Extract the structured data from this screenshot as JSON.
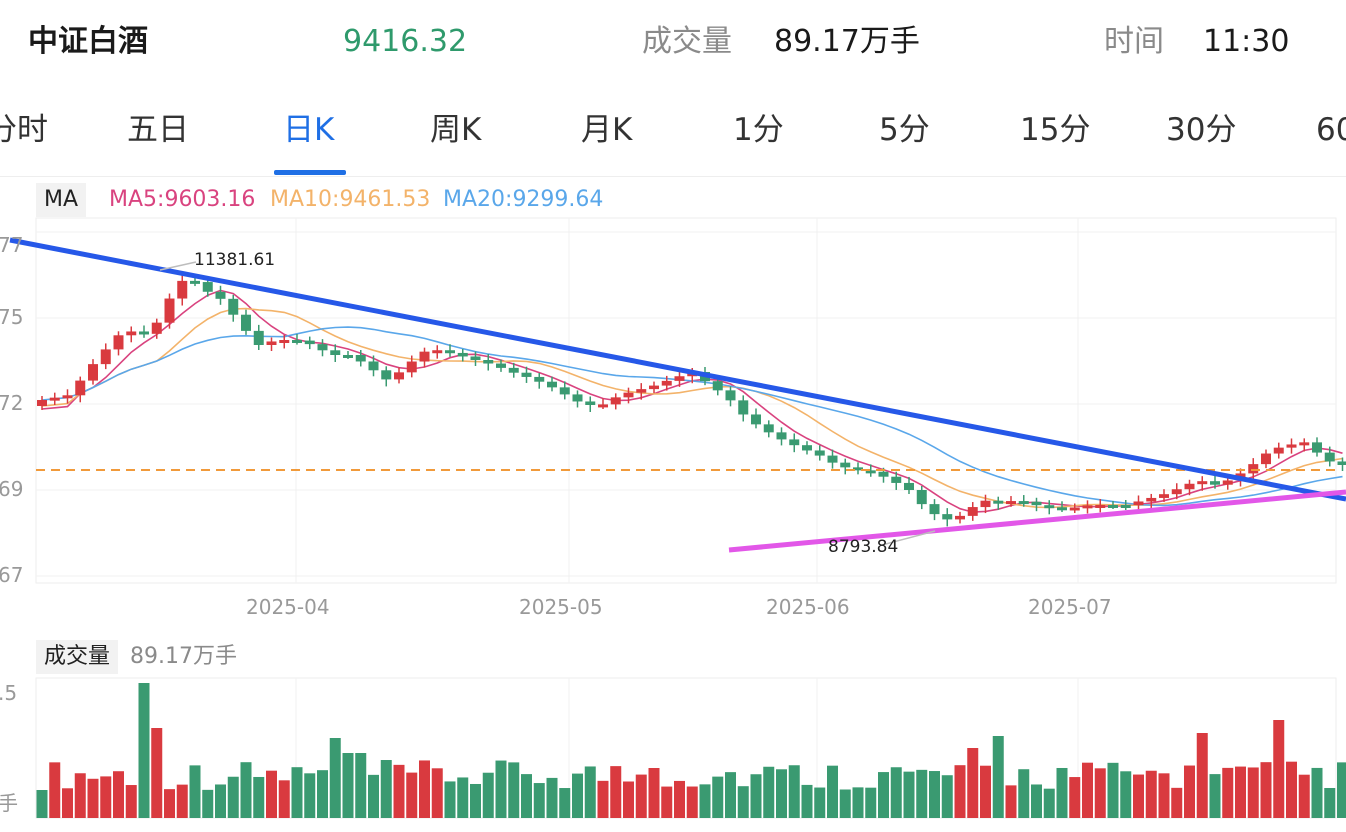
{
  "header": {
    "name": "中证白酒",
    "price": "9416.32",
    "volume_label": "成交量",
    "volume_value": "89.17万手",
    "time_label": "时间",
    "time_value": "11:30",
    "price_color": "#2f9a6c"
  },
  "tabs": [
    "分时",
    "五日",
    "日K",
    "周K",
    "月K",
    "1分",
    "5分",
    "15分",
    "30分",
    "60"
  ],
  "active_tab": "日K",
  "ma_legend": {
    "tag": "MA",
    "ma5": "MA5:9603.16",
    "ma10": "MA10:9461.53",
    "ma20": "MA20:9299.64",
    "colors": {
      "ma5": "#d9437f",
      "ma10": "#f3b36a",
      "ma20": "#5aa7ea"
    }
  },
  "volume_legend": {
    "tag": "成交量",
    "value": "89.17万手"
  },
  "chart_data": {
    "type": "candlestick",
    "y_tick_labels": [
      "77",
      "75",
      "72",
      "69",
      "67"
    ],
    "x_tick_labels": [
      "2025-04",
      "2025-05",
      "2025-06",
      "2025-07"
    ],
    "annotations": {
      "high": "11381.61",
      "low": "8793.84"
    },
    "volume_axis_labels": [
      ".5",
      "手"
    ],
    "colors": {
      "up": "#d93a3f",
      "down": "#3a9a71",
      "trendline_down": "#2658e8",
      "trendline_up": "#e257e8",
      "ref_line": "#f19a3a"
    },
    "trendlines": [
      {
        "name": "resistance",
        "from_price": 11600,
        "to_price": 9090
      },
      {
        "name": "support",
        "from_price": 8720,
        "to_price": 9120
      }
    ],
    "reference_line_price": 9416.32
  }
}
